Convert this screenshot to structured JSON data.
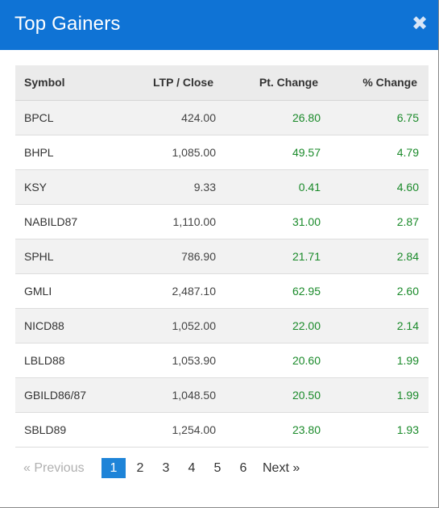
{
  "modal": {
    "title": "Top Gainers",
    "close_symbol": "✖"
  },
  "table": {
    "headers": {
      "symbol": "Symbol",
      "ltp": "LTP / Close",
      "pt_change": "Pt. Change",
      "pct_change": "% Change"
    },
    "rows": [
      {
        "symbol": "BPCL",
        "ltp": "424.00",
        "pt_change": "26.80",
        "pct_change": "6.75"
      },
      {
        "symbol": "BHPL",
        "ltp": "1,085.00",
        "pt_change": "49.57",
        "pct_change": "4.79"
      },
      {
        "symbol": "KSY",
        "ltp": "9.33",
        "pt_change": "0.41",
        "pct_change": "4.60"
      },
      {
        "symbol": "NABILD87",
        "ltp": "1,110.00",
        "pt_change": "31.00",
        "pct_change": "2.87"
      },
      {
        "symbol": "SPHL",
        "ltp": "786.90",
        "pt_change": "21.71",
        "pct_change": "2.84"
      },
      {
        "symbol": "GMLI",
        "ltp": "2,487.10",
        "pt_change": "62.95",
        "pct_change": "2.60"
      },
      {
        "symbol": "NICD88",
        "ltp": "1,052.00",
        "pt_change": "22.00",
        "pct_change": "2.14"
      },
      {
        "symbol": "LBLD88",
        "ltp": "1,053.90",
        "pt_change": "20.60",
        "pct_change": "1.99"
      },
      {
        "symbol": "GBILD86/87",
        "ltp": "1,048.50",
        "pt_change": "20.50",
        "pct_change": "1.99"
      },
      {
        "symbol": "SBLD89",
        "ltp": "1,254.00",
        "pt_change": "23.80",
        "pct_change": "1.93"
      }
    ]
  },
  "pagination": {
    "previous_label": "« Previous",
    "next_label": "Next »",
    "pages": [
      "1",
      "2",
      "3",
      "4",
      "5",
      "6"
    ],
    "current_page": "1"
  },
  "colors": {
    "header_bg": "#0f73d5",
    "gain_green": "#1a8a2a",
    "active_page": "#1e84d8"
  }
}
